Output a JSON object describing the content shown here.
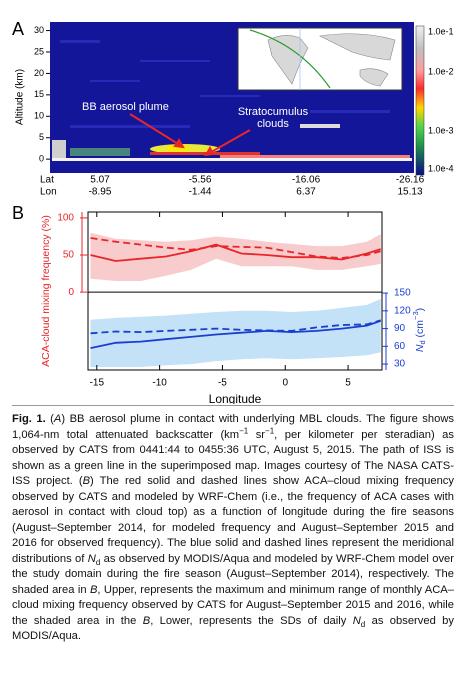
{
  "panel_a": {
    "label": "A",
    "y_axis_label": "Altitude (km)",
    "ylim": [
      -3,
      32
    ],
    "yticks": [
      0,
      5,
      10,
      15,
      20,
      25,
      30
    ],
    "colorbar_labels": [
      "1.0e-1",
      "1.0e-2",
      "1.0e-3",
      "1.0e-4"
    ],
    "annotations": {
      "plume": "BB aerosol plume",
      "clouds": [
        "Stratocumulus",
        "clouds"
      ]
    },
    "lat_label": "Lat",
    "lon_label": "Lon",
    "lat": [
      "5.07",
      "-5.56",
      "-16.06",
      "-26.16"
    ],
    "lon": [
      "-8.95",
      "-1.44",
      "6.37",
      "15.13"
    ]
  },
  "chart_data": {
    "type": "line",
    "label": "B",
    "xlabel": "Longitude",
    "ylabel": "ACA-cloud mixing frequency (%)",
    "y2label": [
      "N",
      "d",
      " (cm",
      "−3",
      ")"
    ],
    "x": [
      -15.5,
      -13.5,
      -11.5,
      -9.5,
      -7.5,
      -5.5,
      -3.5,
      -1.5,
      0.5,
      2.5,
      4.5,
      6.5,
      7.6
    ],
    "xlim": [
      -15.7,
      7.7
    ],
    "xticks": [
      -15,
      -10,
      -5,
      0,
      5
    ],
    "ylim": [
      -105,
      108
    ],
    "yticks": [
      0,
      50,
      100
    ],
    "y_color": "#e8262a",
    "y2lim": [
      20,
      287
    ],
    "y2ticks": [
      30,
      60,
      90,
      120,
      150
    ],
    "y2_color": "#1a3fcf",
    "grid": false,
    "zero_line": true,
    "bands": [
      {
        "color": "#f8cccc",
        "lower": [
          18,
          15,
          15,
          22,
          30,
          45,
          35,
          35,
          35,
          30,
          30,
          35,
          38
        ],
        "upper": [
          80,
          72,
          70,
          68,
          70,
          75,
          72,
          68,
          65,
          62,
          62,
          68,
          78
        ]
      },
      {
        "color": "#c3e2f7",
        "axis": "y2",
        "lower": [
          25,
          25,
          25,
          28,
          30,
          35,
          38,
          40,
          38,
          40,
          42,
          45,
          50
        ],
        "upper": [
          105,
          108,
          110,
          112,
          115,
          118,
          120,
          120,
          118,
          120,
          125,
          130,
          140
        ]
      }
    ],
    "series": [
      {
        "color": "#e8262a",
        "dashed": false,
        "values": [
          50,
          42,
          45,
          48,
          55,
          64,
          52,
          50,
          47,
          47,
          44,
          52,
          58
        ]
      },
      {
        "color": "#e8262a",
        "dashed": true,
        "values": [
          73,
          68,
          64,
          60,
          57,
          62,
          61,
          60,
          54,
          48,
          46,
          50,
          55
        ]
      },
      {
        "color": "#1a3fcf",
        "dashed": false,
        "axis": "y2",
        "values": [
          57,
          66,
          68,
          72,
          76,
          80,
          83,
          86,
          84,
          86,
          90,
          95,
          103
        ]
      },
      {
        "color": "#1a3fcf",
        "dashed": true,
        "axis": "y2",
        "values": [
          82,
          85,
          84,
          86,
          88,
          90,
          88,
          87,
          86,
          92,
          96,
          97,
          104
        ]
      }
    ]
  },
  "caption": {
    "segments": [
      "Fig. 1.",
      " (",
      "A",
      ") BB aerosol plume in contact with underlying MBL clouds. The figure shows 1,064-nm total attenuated backscatter (km",
      "−1",
      " sr",
      "−1",
      ", per kilometer per steradian) as observed by CATS from 0441:44 to 0455:36 UTC, August 5, 2015. The path of ISS is shown as a green line in the superimposed map. Images courtesy of The NASA CATS-ISS project. (",
      "B",
      ") The red solid and dashed lines show ACA–cloud mixing frequency observed by CATS and modeled by WRF-Chem (i.e., the frequency of ACA cases with aerosol in contact with cloud top) as a function of longitude during the fire seasons (August–September 2014, for modeled frequency and August–September 2015 and 2016 for observed frequency). The blue solid and dashed lines represent the meridional distributions of ",
      "N",
      "d",
      " as observed by MODIS/Aqua and modeled by WRF-Chem model over the study domain during the fire season (August–September 2014), respectively. The shaded area in ",
      "B",
      ", Upper, represents the maximum and minimum range of monthly ACA–cloud mixing frequency observed by CATS for August–September 2015 and 2016, while the shaded area in the ",
      "B",
      ", Lower, represents the SDs of daily ",
      "N",
      "d",
      " as observed by MODIS/Aqua."
    ]
  }
}
